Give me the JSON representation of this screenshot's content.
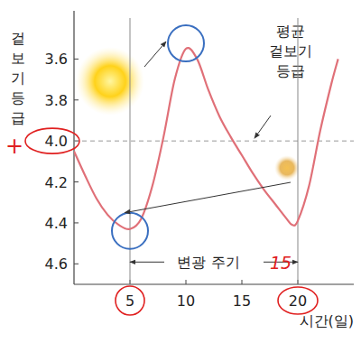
{
  "chart_data": {
    "type": "line",
    "y_label": "겉보기 등급",
    "x_label": "시간(일)",
    "x": [
      0,
      1,
      2,
      3,
      4,
      5,
      6,
      7,
      8,
      9,
      10,
      11,
      12,
      13,
      14,
      15,
      16,
      17,
      18,
      19,
      19.5,
      20,
      21,
      22,
      23,
      23.6
    ],
    "series": [
      {
        "color": "#e07078",
        "values": [
          4.05,
          4.17,
          4.28,
          4.36,
          4.41,
          4.43,
          4.38,
          4.22,
          3.98,
          3.7,
          3.55,
          3.6,
          3.75,
          3.88,
          3.98,
          4.07,
          4.16,
          4.24,
          4.31,
          4.38,
          4.41,
          4.39,
          4.22,
          3.95,
          3.72,
          3.6
        ]
      }
    ],
    "xlim": [
      0,
      25
    ],
    "ylim": [
      3.4,
      4.7
    ],
    "xticks": [
      5,
      10,
      15,
      20
    ],
    "yticks": [
      3.6,
      3.8,
      {
        "value": 4.0,
        "label": "4.0"
      },
      4.2,
      4.4,
      4.6
    ],
    "grid": false,
    "annotations": [
      {
        "text": "평균 겉보기 등급",
        "y": 4.0
      },
      {
        "text": "변광 주기",
        "x_start": 5,
        "x_end": 20
      },
      {
        "text": "15"
      },
      {
        "text": "+"
      }
    ]
  }
}
